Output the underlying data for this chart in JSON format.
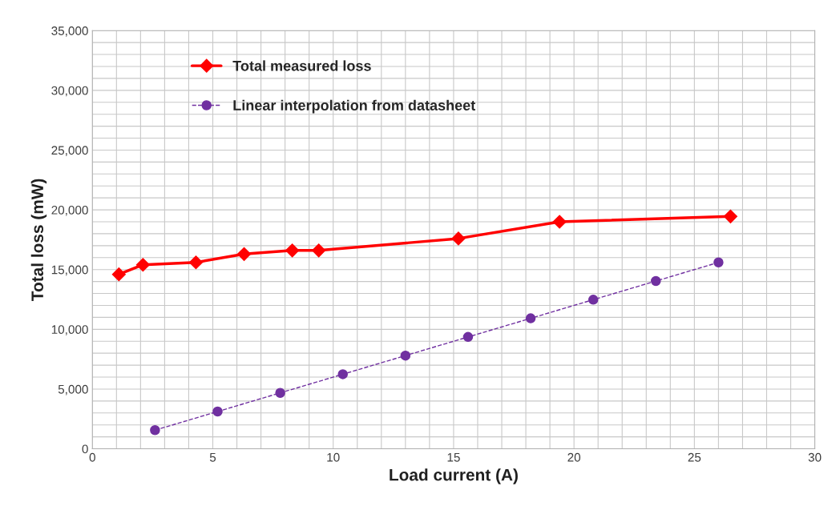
{
  "chart_data": {
    "type": "line",
    "xlabel": "Load current (A)",
    "ylabel": "Total loss (mW)",
    "xlim": [
      0,
      30
    ],
    "xticks": [
      0,
      5,
      10,
      15,
      20,
      25,
      30
    ],
    "ylim": [
      0,
      35000
    ],
    "yticks": [
      {
        "value": 0,
        "label": "0"
      },
      {
        "value": 5000,
        "label": "5,000"
      },
      {
        "value": 10000,
        "label": "10,000"
      },
      {
        "value": 15000,
        "label": "15,000"
      },
      {
        "value": 20000,
        "label": "20,000"
      },
      {
        "value": 25000,
        "label": "25,000"
      },
      {
        "value": 30000,
        "label": "30,000"
      },
      {
        "value": 35000,
        "label": "35,000"
      }
    ],
    "grid": true,
    "legend": "top left",
    "series": [
      {
        "name": "Total measured loss",
        "color": "#ff0000",
        "marker": "diamond",
        "line_style": "solid",
        "x": [
          1.1,
          2.1,
          4.3,
          6.3,
          8.3,
          9.4,
          15.2,
          19.4,
          26.5
        ],
        "values": [
          14600,
          15400,
          15600,
          16300,
          16600,
          16600,
          17600,
          19000,
          19450
        ]
      },
      {
        "name": "Linear interpolation from datasheet",
        "color": "#7030a0",
        "marker": "circle",
        "line_style": "dashed",
        "x": [
          2.6,
          5.2,
          7.8,
          10.4,
          13.0,
          15.6,
          18.2,
          20.8,
          23.4,
          26.0
        ],
        "values": [
          1560,
          3120,
          4680,
          6240,
          7800,
          9360,
          10920,
          12480,
          14040,
          15600
        ]
      }
    ]
  }
}
